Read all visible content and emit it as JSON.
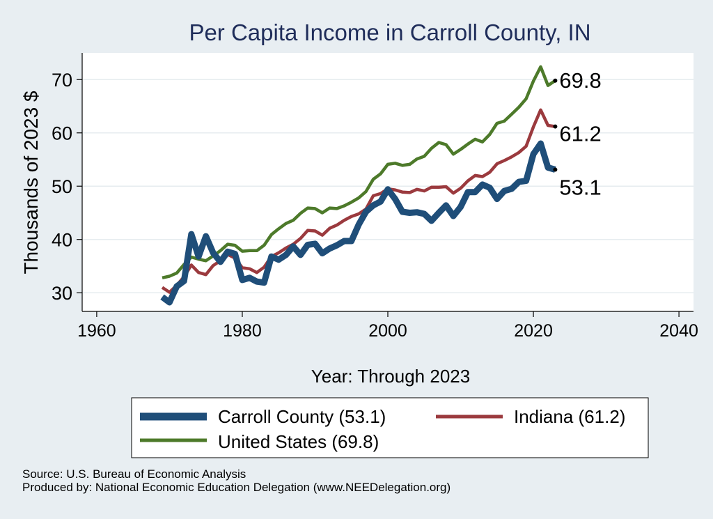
{
  "chart_data": {
    "type": "line",
    "title": "Per Capita Income in Carroll County, IN",
    "xlabel": "Year: Through 2023",
    "ylabel": "Thousands of 2023 $",
    "xlim": [
      1958,
      2042
    ],
    "ylim": [
      26.5,
      75
    ],
    "x_ticks": [
      1960,
      1980,
      2000,
      2020,
      2040
    ],
    "y_ticks": [
      30,
      40,
      50,
      60,
      70
    ],
    "grid": true,
    "legend_position": "bottom",
    "x": [
      1969,
      1970,
      1971,
      1972,
      1973,
      1974,
      1975,
      1976,
      1977,
      1978,
      1979,
      1980,
      1981,
      1982,
      1983,
      1984,
      1985,
      1986,
      1987,
      1988,
      1989,
      1990,
      1991,
      1992,
      1993,
      1994,
      1995,
      1996,
      1997,
      1998,
      1999,
      2000,
      2001,
      2002,
      2003,
      2004,
      2005,
      2006,
      2007,
      2008,
      2009,
      2010,
      2011,
      2012,
      2013,
      2014,
      2015,
      2016,
      2017,
      2018,
      2019,
      2020,
      2021,
      2022,
      2023
    ],
    "series": [
      {
        "name": "Carroll County",
        "legend_label": "Carroll County (53.1)",
        "color": "#1f4e79",
        "end_label": "53.1",
        "values": [
          29.2,
          28.2,
          31.2,
          32.2,
          41.0,
          36.8,
          40.6,
          37.5,
          35.8,
          37.7,
          37.3,
          32.4,
          32.8,
          32.1,
          31.9,
          36.8,
          36.2,
          37.1,
          38.7,
          37.1,
          39.0,
          39.2,
          37.4,
          38.3,
          38.9,
          39.7,
          39.7,
          42.8,
          45.2,
          46.4,
          47.1,
          49.4,
          47.6,
          45.2,
          45.0,
          45.1,
          44.8,
          43.5,
          45.0,
          46.4,
          44.4,
          46.1,
          48.9,
          48.9,
          50.3,
          49.7,
          47.6,
          49.1,
          49.5,
          50.8,
          51.0,
          56.0,
          58.0,
          53.5,
          53.1
        ]
      },
      {
        "name": "Indiana",
        "legend_label": "Indiana (61.2)",
        "color": "#9b3a3e",
        "end_label": "61.2",
        "values": [
          31.0,
          30.1,
          31.4,
          33.0,
          35.2,
          33.8,
          33.4,
          35.1,
          36.0,
          37.2,
          36.5,
          34.7,
          34.5,
          33.8,
          34.8,
          36.8,
          37.5,
          38.4,
          39.1,
          40.2,
          41.7,
          41.6,
          40.8,
          42.1,
          42.7,
          43.6,
          44.3,
          44.8,
          45.7,
          48.2,
          48.6,
          49.5,
          49.3,
          48.9,
          48.8,
          49.4,
          49.1,
          49.8,
          49.8,
          49.9,
          48.7,
          49.6,
          51.0,
          52.0,
          51.8,
          52.6,
          54.2,
          54.8,
          55.5,
          56.3,
          57.5,
          61.1,
          64.3,
          61.4,
          61.2
        ]
      },
      {
        "name": "United States",
        "legend_label": "United States (69.8)",
        "color": "#4d7a2a",
        "end_label": "69.8",
        "values": [
          32.8,
          33.1,
          33.7,
          35.3,
          36.7,
          36.3,
          36.0,
          36.9,
          37.9,
          39.1,
          38.9,
          37.8,
          37.9,
          37.9,
          38.9,
          40.9,
          42.0,
          43.0,
          43.6,
          44.9,
          45.9,
          45.8,
          45.0,
          45.9,
          45.8,
          46.3,
          47.0,
          47.8,
          49.0,
          51.3,
          52.3,
          54.1,
          54.3,
          53.9,
          54.1,
          55.1,
          55.6,
          57.1,
          58.2,
          57.8,
          56.0,
          56.9,
          57.9,
          58.8,
          58.3,
          59.7,
          61.8,
          62.2,
          63.5,
          64.8,
          66.4,
          69.7,
          72.4,
          68.9,
          69.8
        ]
      }
    ]
  },
  "footer": {
    "source": "Source: U.S. Bureau of Economic Analysis",
    "produced_by": "Produced by: National Economic Education Delegation (www.NEEDelegation.org)"
  }
}
